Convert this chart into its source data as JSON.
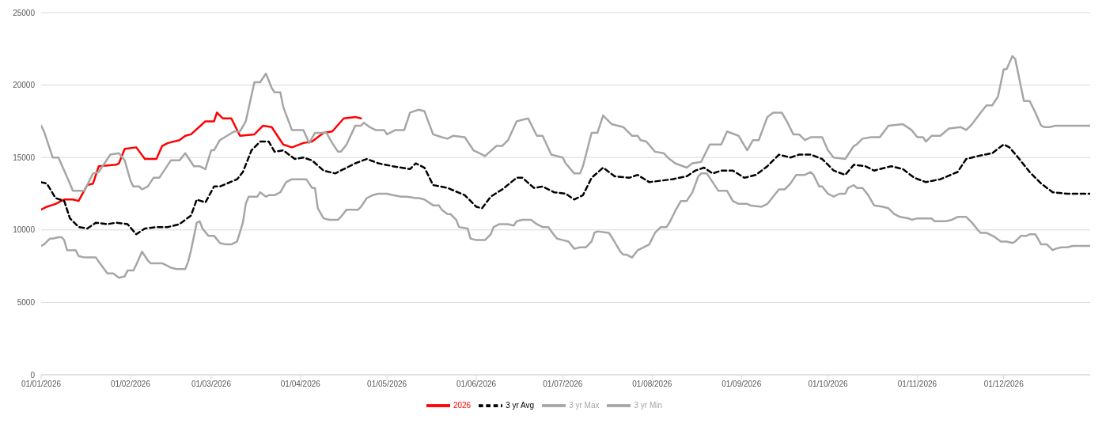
{
  "chart_data": {
    "type": "line",
    "xlim": [
      "2026-01-01",
      "2026-12-31"
    ],
    "xticks": [
      {
        "value": "2026-01-01",
        "label": "01/01/2026"
      },
      {
        "value": "2026-02-01",
        "label": "01/02/2026"
      },
      {
        "value": "2026-03-01",
        "label": "01/03/2026"
      },
      {
        "value": "2026-04-01",
        "label": "01/04/2026"
      },
      {
        "value": "2026-05-01",
        "label": "01/05/2026"
      },
      {
        "value": "2026-06-01",
        "label": "01/06/2026"
      },
      {
        "value": "2026-07-01",
        "label": "01/07/2026"
      },
      {
        "value": "2026-08-01",
        "label": "01/08/2026"
      },
      {
        "value": "2026-09-01",
        "label": "01/09/2026"
      },
      {
        "value": "2026-10-01",
        "label": "01/10/2026"
      },
      {
        "value": "2026-11-01",
        "label": "01/11/2026"
      },
      {
        "value": "2026-12-01",
        "label": "01/12/2026"
      }
    ],
    "ylim": [
      0,
      25000
    ],
    "yticks": [
      0,
      5000,
      10000,
      15000,
      20000,
      25000
    ],
    "grid": "y",
    "legend": "bottom",
    "marker": "none",
    "series": [
      {
        "name": "2026",
        "color": "#ff0000",
        "line_style": "solid",
        "x": [
          "2026-01-01",
          "2026-01-03",
          "2026-01-06",
          "2026-01-09",
          "2026-01-12",
          "2026-01-14",
          "2026-01-17",
          "2026-01-19",
          "2026-01-21",
          "2026-01-27",
          "2026-01-28",
          "2026-01-30",
          "2026-02-03",
          "2026-02-06",
          "2026-02-09",
          "2026-02-10",
          "2026-02-12",
          "2026-02-14",
          "2026-02-18",
          "2026-02-20",
          "2026-02-22",
          "2026-02-27",
          "2026-03-02",
          "2026-03-03",
          "2026-03-05",
          "2026-03-08",
          "2026-03-11",
          "2026-03-16",
          "2026-03-19",
          "2026-03-22",
          "2026-03-26",
          "2026-03-29",
          "2026-04-02",
          "2026-04-05",
          "2026-04-09",
          "2026-04-12",
          "2026-04-16",
          "2026-04-20",
          "2026-04-22"
        ],
        "values": [
          11400,
          11600,
          11800,
          12100,
          12100,
          12000,
          13100,
          13200,
          14400,
          14500,
          14600,
          15600,
          15700,
          14900,
          14900,
          14900,
          15800,
          16000,
          16200,
          16500,
          16600,
          17500,
          17500,
          18100,
          17700,
          17700,
          16500,
          16600,
          17200,
          17100,
          15900,
          15700,
          16000,
          16100,
          16700,
          16800,
          17700,
          17800,
          17700
        ]
      },
      {
        "name": "3 yr Avg",
        "color": "#000000",
        "line_style": "dashed",
        "x": [
          "2026-01-01",
          "2026-01-03",
          "2026-01-06",
          "2026-01-09",
          "2026-01-11",
          "2026-01-14",
          "2026-01-17",
          "2026-01-20",
          "2026-01-24",
          "2026-01-27",
          "2026-01-31",
          "2026-02-03",
          "2026-02-06",
          "2026-02-10",
          "2026-02-14",
          "2026-02-18",
          "2026-02-22",
          "2026-02-24",
          "2026-02-27",
          "2026-03-02",
          "2026-03-04",
          "2026-03-10",
          "2026-03-12",
          "2026-03-15",
          "2026-03-18",
          "2026-03-21",
          "2026-03-23",
          "2026-03-26",
          "2026-03-30",
          "2026-04-02",
          "2026-04-05",
          "2026-04-09",
          "2026-04-13",
          "2026-04-17",
          "2026-04-20",
          "2026-04-24",
          "2026-04-28",
          "2026-05-03",
          "2026-05-09",
          "2026-05-11",
          "2026-05-14",
          "2026-05-17",
          "2026-05-22",
          "2026-05-28",
          "2026-06-01",
          "2026-06-03",
          "2026-06-06",
          "2026-06-10",
          "2026-06-15",
          "2026-06-17",
          "2026-06-21",
          "2026-06-24",
          "2026-06-28",
          "2026-07-02",
          "2026-07-05",
          "2026-07-08",
          "2026-07-11",
          "2026-07-15",
          "2026-07-19",
          "2026-07-24",
          "2026-07-27",
          "2026-07-31",
          "2026-08-04",
          "2026-08-08",
          "2026-08-13",
          "2026-08-16",
          "2026-08-19",
          "2026-08-22",
          "2026-08-25",
          "2026-08-29",
          "2026-09-02",
          "2026-09-06",
          "2026-09-10",
          "2026-09-14",
          "2026-09-18",
          "2026-09-21",
          "2026-09-25",
          "2026-09-29",
          "2026-10-03",
          "2026-10-07",
          "2026-10-10",
          "2026-10-14",
          "2026-10-17",
          "2026-10-23",
          "2026-10-27",
          "2026-10-31",
          "2026-11-04",
          "2026-11-09",
          "2026-11-15",
          "2026-11-18",
          "2026-11-22",
          "2026-11-27",
          "2026-12-01",
          "2026-12-03",
          "2026-12-06",
          "2026-12-10",
          "2026-12-14",
          "2026-12-18",
          "2026-12-23",
          "2026-12-31"
        ],
        "values": [
          13300,
          13200,
          12200,
          12000,
          10800,
          10200,
          10100,
          10500,
          10400,
          10500,
          10400,
          9700,
          10100,
          10200,
          10200,
          10400,
          11000,
          12100,
          11900,
          13000,
          13000,
          13500,
          14000,
          15500,
          16100,
          16100,
          15400,
          15500,
          14900,
          15000,
          14800,
          14100,
          13900,
          14300,
          14600,
          14900,
          14600,
          14400,
          14200,
          14600,
          14300,
          13100,
          12900,
          12400,
          11600,
          11500,
          12300,
          12800,
          13600,
          13600,
          12900,
          13000,
          12600,
          12500,
          12100,
          12400,
          13600,
          14300,
          13700,
          13600,
          13800,
          13300,
          13400,
          13500,
          13700,
          14100,
          14300,
          13900,
          14100,
          14100,
          13600,
          13800,
          14400,
          15200,
          15000,
          15200,
          15200,
          14900,
          14100,
          13800,
          14500,
          14400,
          14100,
          14400,
          14200,
          13600,
          13300,
          13500,
          14000,
          14900,
          15100,
          15300,
          15900,
          15700,
          15000,
          14000,
          13200,
          12600,
          12500,
          12500
        ]
      },
      {
        "name": "3 yr Max",
        "color": "#a6a6a6",
        "line_style": "solid",
        "x": [
          "2026-01-01",
          "2026-01-02",
          "2026-01-05",
          "2026-01-07",
          "2026-01-11",
          "2026-01-12",
          "2026-01-16",
          "2026-01-19",
          "2026-01-21",
          "2026-01-25",
          "2026-01-28",
          "2026-01-30",
          "2026-02-01",
          "2026-02-02",
          "2026-02-04",
          "2026-02-05",
          "2026-02-07",
          "2026-02-09",
          "2026-02-11",
          "2026-02-15",
          "2026-02-18",
          "2026-02-20",
          "2026-02-23",
          "2026-02-25",
          "2026-02-27",
          "2026-03-01",
          "2026-03-02",
          "2026-03-04",
          "2026-03-09",
          "2026-03-11",
          "2026-03-13",
          "2026-03-16",
          "2026-03-18",
          "2026-03-20",
          "2026-03-22",
          "2026-03-23",
          "2026-03-25",
          "2026-03-26",
          "2026-03-29",
          "2026-04-02",
          "2026-04-04",
          "2026-04-06",
          "2026-04-10",
          "2026-04-12",
          "2026-04-14",
          "2026-04-15",
          "2026-04-17",
          "2026-04-20",
          "2026-04-22",
          "2026-04-23",
          "2026-04-25",
          "2026-04-27",
          "2026-04-30",
          "2026-05-01",
          "2026-05-04",
          "2026-05-07",
          "2026-05-09",
          "2026-05-12",
          "2026-05-14",
          "2026-05-17",
          "2026-05-20",
          "2026-05-22",
          "2026-05-24",
          "2026-05-28",
          "2026-05-31",
          "2026-06-02",
          "2026-06-04",
          "2026-06-08",
          "2026-06-10",
          "2026-06-12",
          "2026-06-15",
          "2026-06-17",
          "2026-06-19",
          "2026-06-22",
          "2026-06-24",
          "2026-06-27",
          "2026-07-01",
          "2026-07-02",
          "2026-07-05",
          "2026-07-07",
          "2026-07-08",
          "2026-07-11",
          "2026-07-13",
          "2026-07-15",
          "2026-07-18",
          "2026-07-22",
          "2026-07-25",
          "2026-07-27",
          "2026-07-28",
          "2026-07-30",
          "2026-08-02",
          "2026-08-05",
          "2026-08-07",
          "2026-08-09",
          "2026-08-13",
          "2026-08-15",
          "2026-08-18",
          "2026-08-21",
          "2026-08-25",
          "2026-08-27",
          "2026-08-31",
          "2026-09-03",
          "2026-09-05",
          "2026-09-07",
          "2026-09-10",
          "2026-09-12",
          "2026-09-15",
          "2026-09-17",
          "2026-09-19",
          "2026-09-21",
          "2026-09-23",
          "2026-09-25",
          "2026-09-29",
          "2026-10-01",
          "2026-10-03",
          "2026-10-07",
          "2026-10-10",
          "2026-10-11",
          "2026-10-13",
          "2026-10-16",
          "2026-10-19",
          "2026-10-22",
          "2026-10-27",
          "2026-10-30",
          "2026-11-01",
          "2026-11-03",
          "2026-11-04",
          "2026-11-06",
          "2026-11-09",
          "2026-11-12",
          "2026-11-16",
          "2026-11-18",
          "2026-11-20",
          "2026-11-23",
          "2026-11-25",
          "2026-11-27",
          "2026-11-29",
          "2026-12-01",
          "2026-12-02",
          "2026-12-04",
          "2026-12-05",
          "2026-12-08",
          "2026-12-10",
          "2026-12-12",
          "2026-12-14",
          "2026-12-15",
          "2026-12-17",
          "2026-12-19",
          "2026-12-22",
          "2026-12-31"
        ],
        "values": [
          17200,
          16800,
          15000,
          15000,
          13200,
          12700,
          12700,
          13900,
          14000,
          15200,
          15300,
          14800,
          13400,
          13000,
          13000,
          12800,
          13000,
          13600,
          13600,
          14800,
          14800,
          15300,
          14400,
          14400,
          14200,
          15500,
          15500,
          16200,
          16800,
          16800,
          17500,
          20200,
          20200,
          20800,
          19800,
          19500,
          19500,
          18500,
          16900,
          16900,
          16000,
          16700,
          16700,
          16000,
          15400,
          15400,
          15900,
          17200,
          17200,
          17400,
          17100,
          16900,
          16900,
          16600,
          16900,
          16900,
          18100,
          18300,
          18200,
          16600,
          16400,
          16300,
          16500,
          16400,
          15500,
          15300,
          15100,
          15800,
          15800,
          16200,
          17500,
          17600,
          17700,
          16500,
          16500,
          15200,
          15000,
          14600,
          13900,
          13900,
          14400,
          16700,
          16700,
          17900,
          17300,
          17100,
          16500,
          16500,
          16200,
          16100,
          15400,
          15300,
          14900,
          14600,
          14300,
          14600,
          14700,
          15900,
          15900,
          16800,
          16500,
          15500,
          16200,
          16200,
          17800,
          18100,
          18100,
          17400,
          16600,
          16600,
          16200,
          16400,
          16400,
          15500,
          15000,
          14900,
          15800,
          15900,
          16300,
          16400,
          16400,
          17200,
          17300,
          16900,
          16400,
          16400,
          16100,
          16500,
          16500,
          17000,
          17100,
          16900,
          17300,
          18100,
          18600,
          18600,
          19200,
          21100,
          21100,
          22000,
          21800,
          18900,
          18900,
          18100,
          17200,
          17100,
          17100,
          17200,
          17200,
          17200
        ]
      },
      {
        "name": "3 yr Min",
        "color": "#a6a6a6",
        "line_style": "solid",
        "x": [
          "2026-01-01",
          "2026-01-02",
          "2026-01-04",
          "2026-01-05",
          "2026-01-07",
          "2026-01-08",
          "2026-01-09",
          "2026-01-10",
          "2026-01-13",
          "2026-01-14",
          "2026-01-16",
          "2026-01-20",
          "2026-01-21",
          "2026-01-24",
          "2026-01-26",
          "2026-01-28",
          "2026-01-30",
          "2026-01-31",
          "2026-02-02",
          "2026-02-03",
          "2026-02-05",
          "2026-02-07",
          "2026-02-08",
          "2026-02-12",
          "2026-02-15",
          "2026-02-17",
          "2026-02-20",
          "2026-02-21",
          "2026-02-22",
          "2026-02-24",
          "2026-02-25",
          "2026-02-26",
          "2026-02-28",
          "2026-03-02",
          "2026-03-04",
          "2026-03-06",
          "2026-03-08",
          "2026-03-10",
          "2026-03-12",
          "2026-03-13",
          "2026-03-14",
          "2026-03-17",
          "2026-03-18",
          "2026-03-20",
          "2026-03-21",
          "2026-03-23",
          "2026-03-25",
          "2026-03-27",
          "2026-03-29",
          "2026-04-02",
          "2026-04-03",
          "2026-04-05",
          "2026-04-06",
          "2026-04-07",
          "2026-04-09",
          "2026-04-11",
          "2026-04-14",
          "2026-04-15",
          "2026-04-17",
          "2026-04-21",
          "2026-04-22",
          "2026-04-24",
          "2026-04-26",
          "2026-04-28",
          "2026-05-01",
          "2026-05-03",
          "2026-05-06",
          "2026-05-08",
          "2026-05-11",
          "2026-05-12",
          "2026-05-14",
          "2026-05-17",
          "2026-05-19",
          "2026-05-20",
          "2026-05-22",
          "2026-05-23",
          "2026-05-25",
          "2026-05-26",
          "2026-05-29",
          "2026-05-30",
          "2026-06-01",
          "2026-06-04",
          "2026-06-06",
          "2026-06-07",
          "2026-06-09",
          "2026-06-12",
          "2026-06-14",
          "2026-06-15",
          "2026-06-17",
          "2026-06-20",
          "2026-06-22",
          "2026-06-24",
          "2026-06-26",
          "2026-06-27",
          "2026-06-29",
          "2026-07-01",
          "2026-07-03",
          "2026-07-05",
          "2026-07-07",
          "2026-07-09",
          "2026-07-11",
          "2026-07-12",
          "2026-07-13",
          "2026-07-17",
          "2026-07-18",
          "2026-07-21",
          "2026-07-22",
          "2026-07-23",
          "2026-07-25",
          "2026-07-27",
          "2026-07-29",
          "2026-07-31",
          "2026-08-02",
          "2026-08-04",
          "2026-08-06",
          "2026-08-07",
          "2026-08-09",
          "2026-08-11",
          "2026-08-13",
          "2026-08-15",
          "2026-08-17",
          "2026-08-18",
          "2026-08-20",
          "2026-08-22",
          "2026-08-24",
          "2026-08-27",
          "2026-08-29",
          "2026-08-31",
          "2026-09-03",
          "2026-09-04",
          "2026-09-08",
          "2026-09-10",
          "2026-09-12",
          "2026-09-14",
          "2026-09-16",
          "2026-09-18",
          "2026-09-20",
          "2026-09-23",
          "2026-09-25",
          "2026-09-26",
          "2026-09-28",
          "2026-09-29",
          "2026-10-01",
          "2026-10-03",
          "2026-10-05",
          "2026-10-07",
          "2026-10-08",
          "2026-10-10",
          "2026-10-11",
          "2026-10-13",
          "2026-10-15",
          "2026-10-17",
          "2026-10-20",
          "2026-10-22",
          "2026-10-24",
          "2026-10-26",
          "2026-10-29",
          "2026-10-30",
          "2026-11-01",
          "2026-11-03",
          "2026-11-06",
          "2026-11-07",
          "2026-11-11",
          "2026-11-13",
          "2026-11-15",
          "2026-11-18",
          "2026-11-20",
          "2026-11-22",
          "2026-11-23",
          "2026-11-25",
          "2026-11-28",
          "2026-11-30",
          "2026-12-02",
          "2026-12-04",
          "2026-12-05",
          "2026-12-07",
          "2026-12-09",
          "2026-12-10",
          "2026-12-12",
          "2026-12-14",
          "2026-12-16",
          "2026-12-18",
          "2026-12-19",
          "2026-12-21",
          "2026-12-23",
          "2026-12-25",
          "2026-12-31"
        ],
        "values": [
          8900,
          9000,
          9400,
          9400,
          9500,
          9500,
          9300,
          8600,
          8600,
          8200,
          8100,
          8100,
          7800,
          7000,
          7000,
          6700,
          6800,
          7200,
          7200,
          7600,
          8500,
          7900,
          7700,
          7700,
          7400,
          7300,
          7300,
          7800,
          8600,
          10500,
          10600,
          10100,
          9600,
          9600,
          9100,
          9000,
          9000,
          9200,
          10500,
          11800,
          12300,
          12300,
          12600,
          12300,
          12400,
          12400,
          12600,
          13300,
          13500,
          13500,
          13500,
          12900,
          12900,
          11500,
          10800,
          10700,
          10700,
          10900,
          11400,
          11400,
          11600,
          12200,
          12400,
          12500,
          12500,
          12400,
          12300,
          12300,
          12200,
          12200,
          12100,
          11700,
          11700,
          11400,
          11100,
          11100,
          10700,
          10200,
          10100,
          9400,
          9300,
          9300,
          9700,
          10200,
          10400,
          10400,
          10300,
          10600,
          10700,
          10700,
          10400,
          10200,
          10200,
          9900,
          9400,
          9300,
          9200,
          8700,
          8800,
          8800,
          9200,
          9800,
          9900,
          9800,
          9500,
          8500,
          8300,
          8300,
          8100,
          8600,
          8800,
          9000,
          9800,
          10200,
          10200,
          10500,
          11300,
          12000,
          12000,
          12600,
          13700,
          13900,
          13900,
          13300,
          12700,
          12700,
          12000,
          11800,
          11800,
          11700,
          11600,
          11800,
          12300,
          12800,
          12800,
          13200,
          13800,
          13800,
          14000,
          13800,
          13000,
          13000,
          12500,
          12300,
          12500,
          12500,
          12900,
          13100,
          12900,
          12900,
          12400,
          11700,
          11600,
          11500,
          11100,
          10900,
          10800,
          10700,
          10800,
          10800,
          10800,
          10600,
          10600,
          10700,
          10900,
          10900,
          10500,
          10000,
          9800,
          9800,
          9500,
          9200,
          9200,
          9100,
          9200,
          9600,
          9600,
          9700,
          9700,
          9000,
          9000,
          8600,
          8700,
          8800,
          8800,
          8900,
          8900
        ]
      }
    ]
  }
}
